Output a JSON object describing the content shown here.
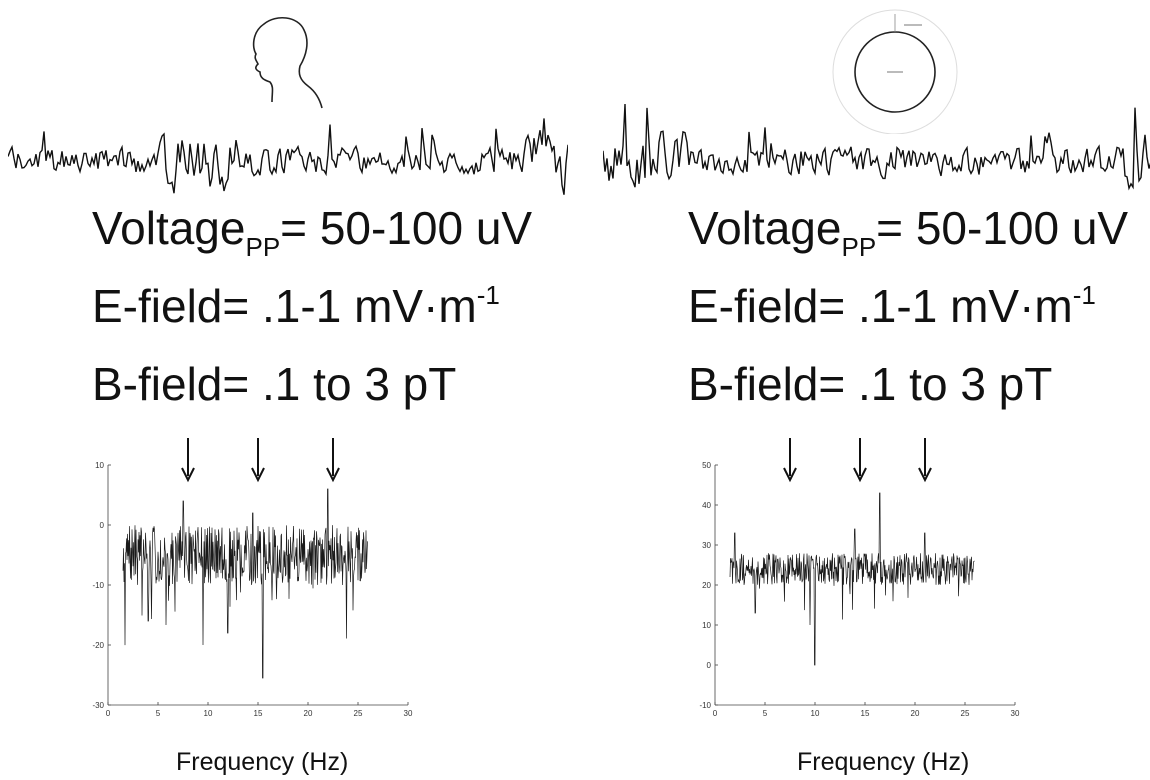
{
  "panels": [
    {
      "id": "head",
      "icon": "human-head-silhouette-icon",
      "voltage": {
        "label": "Voltage",
        "sub": "PP",
        "value": "= 50-100 uV"
      },
      "efield": {
        "label": "E-field= .1-1 mV·m",
        "sup": "-1"
      },
      "bfield": {
        "label": "B-field= .1 to 3 pT"
      }
    },
    {
      "id": "sphere",
      "icon": "sphere-circle-diagram-icon",
      "voltage": {
        "label": "Voltage",
        "sub": "PP",
        "value": "= 50-100 uV"
      },
      "efield": {
        "label": "E-field= .1-1 mV·m",
        "sup": "-1"
      },
      "bfield": {
        "label": "B-field= .1 to 3 pT"
      }
    }
  ],
  "chart_data": [
    {
      "type": "line",
      "title": "",
      "xlabel": "Frequency (Hz)",
      "ylabel": "",
      "xlim": [
        0,
        30
      ],
      "ylim": [
        -30,
        10
      ],
      "xticks": [
        "0",
        "5",
        "10",
        "15",
        "20",
        "25",
        "30"
      ],
      "yticks": [
        "10",
        "0",
        "-10",
        "-20",
        "-30"
      ],
      "grid": false,
      "frequency_range": [
        1.5,
        26
      ],
      "baseline": -5,
      "noise": 5,
      "peaks": [
        {
          "x": 7.5,
          "y": 4
        },
        {
          "x": 14.5,
          "y": 2
        },
        {
          "x": 22,
          "y": 6
        }
      ],
      "dips": [
        {
          "x": 15.5,
          "y": -25.5
        },
        {
          "x": 9.5,
          "y": -20
        },
        {
          "x": 12,
          "y": -18
        },
        {
          "x": 4,
          "y": -16
        }
      ],
      "arrows_at": [
        8,
        15,
        22.5
      ]
    },
    {
      "type": "line",
      "title": "",
      "xlabel": "Frequency (Hz)",
      "ylabel": "",
      "xlim": [
        0,
        30
      ],
      "ylim": [
        -10,
        50
      ],
      "xticks": [
        "0",
        "5",
        "10",
        "15",
        "20",
        "25",
        "30"
      ],
      "yticks": [
        "50",
        "40",
        "30",
        "20",
        "10",
        "0",
        "-10"
      ],
      "grid": false,
      "frequency_range": [
        1.5,
        26
      ],
      "baseline": 24,
      "noise": 4,
      "peaks": [
        {
          "x": 16.5,
          "y": 43
        },
        {
          "x": 14,
          "y": 34
        },
        {
          "x": 2,
          "y": 33
        },
        {
          "x": 21,
          "y": 33
        }
      ],
      "dips": [
        {
          "x": 10,
          "y": 0
        },
        {
          "x": 9.5,
          "y": 10
        },
        {
          "x": 4,
          "y": 13
        }
      ],
      "arrows_at": [
        7.5,
        14.5,
        21
      ]
    }
  ]
}
